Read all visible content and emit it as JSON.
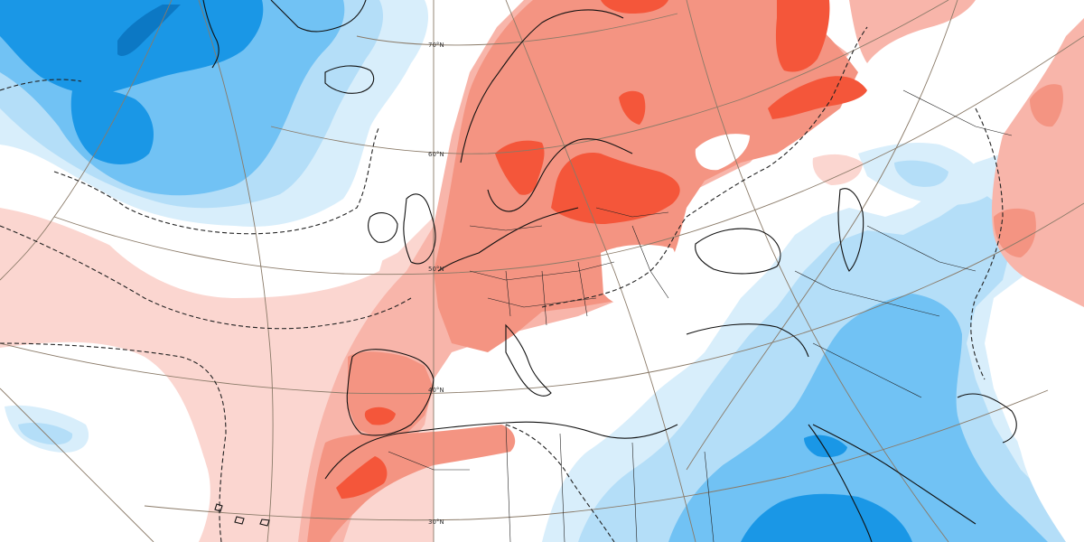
{
  "map": {
    "colors": {
      "cold_strong": "#1a97e6",
      "cold_medium": "#71c2f4",
      "cold_weak": "#b4def8",
      "cold_faint": "#d8eefb",
      "warm_faint": "#fbd6d0",
      "warm_weak": "#f8b5aa",
      "warm_medium": "#f49482",
      "warm_strong": "#f4563a",
      "neutral": "#ffffff",
      "graticule": "#8a7a68",
      "coastline": "#111111"
    },
    "latitude_labels": [
      "70°N",
      "60°N",
      "50°N",
      "40°N",
      "30°N"
    ]
  }
}
